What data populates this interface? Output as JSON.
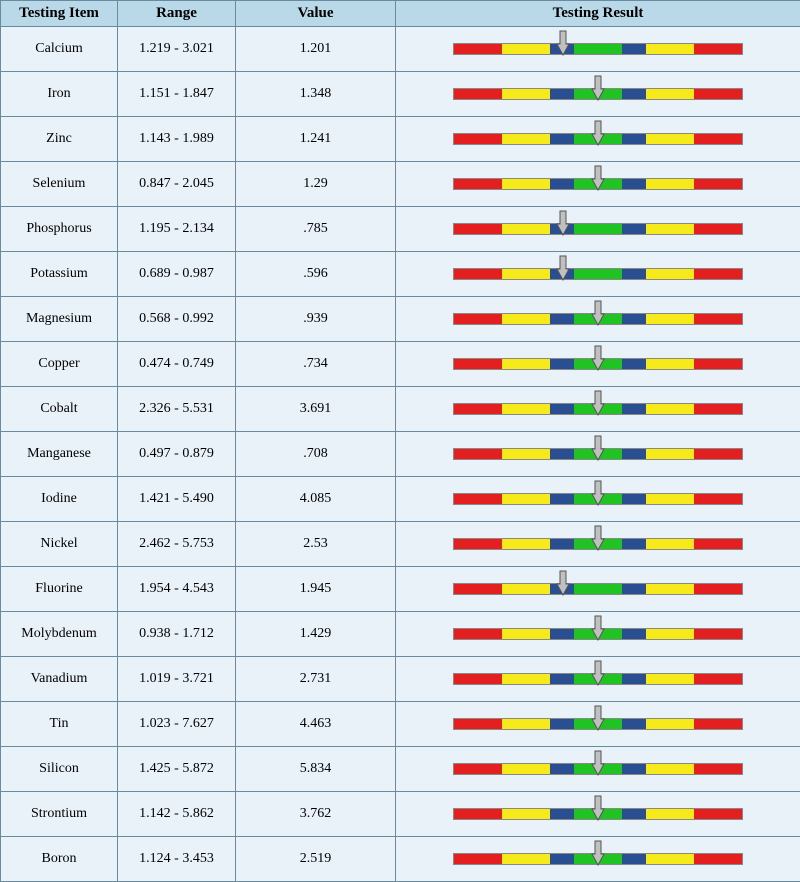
{
  "headers": {
    "item": "Testing Item",
    "range": "Range",
    "value": "Value",
    "result": "Testing Result"
  },
  "gauge": {
    "segments": [
      {
        "color": "#e3201f",
        "ratio": 0.166
      },
      {
        "color": "#f7ea1a",
        "ratio": 0.166
      },
      {
        "color": "#2a4e92",
        "ratio": 0.084
      },
      {
        "color": "#1fc423",
        "ratio": 0.168
      },
      {
        "color": "#2a4e92",
        "ratio": 0.084
      },
      {
        "color": "#f7ea1a",
        "ratio": 0.166
      },
      {
        "color": "#e3201f",
        "ratio": 0.166
      }
    ],
    "arrow_fill": "#c0c0c0",
    "arrow_stroke": "#555555",
    "border_color": "#888888"
  },
  "rows": [
    {
      "item": "Calcium",
      "range": "1.219 - 3.021",
      "value": "1.201",
      "arrow_pos": 0.38
    },
    {
      "item": "Iron",
      "range": "1.151 - 1.847",
      "value": "1.348",
      "arrow_pos": 0.5
    },
    {
      "item": "Zinc",
      "range": "1.143 - 1.989",
      "value": "1.241",
      "arrow_pos": 0.5
    },
    {
      "item": "Selenium",
      "range": "0.847 - 2.045",
      "value": "1.29",
      "arrow_pos": 0.5
    },
    {
      "item": "Phosphorus",
      "range": "1.195 - 2.134",
      "value": ".785",
      "arrow_pos": 0.38
    },
    {
      "item": "Potassium",
      "range": "0.689 - 0.987",
      "value": ".596",
      "arrow_pos": 0.38
    },
    {
      "item": "Magnesium",
      "range": "0.568 - 0.992",
      "value": ".939",
      "arrow_pos": 0.5
    },
    {
      "item": "Copper",
      "range": "0.474 - 0.749",
      "value": ".734",
      "arrow_pos": 0.5
    },
    {
      "item": "Cobalt",
      "range": "2.326 - 5.531",
      "value": "3.691",
      "arrow_pos": 0.5
    },
    {
      "item": "Manganese",
      "range": "0.497 - 0.879",
      "value": ".708",
      "arrow_pos": 0.5
    },
    {
      "item": "Iodine",
      "range": "1.421 - 5.490",
      "value": "4.085",
      "arrow_pos": 0.5
    },
    {
      "item": "Nickel",
      "range": "2.462 - 5.753",
      "value": "2.53",
      "arrow_pos": 0.5
    },
    {
      "item": "Fluorine",
      "range": "1.954 - 4.543",
      "value": "1.945",
      "arrow_pos": 0.38
    },
    {
      "item": "Molybdenum",
      "range": "0.938 - 1.712",
      "value": "1.429",
      "arrow_pos": 0.5
    },
    {
      "item": "Vanadium",
      "range": "1.019 - 3.721",
      "value": "2.731",
      "arrow_pos": 0.5
    },
    {
      "item": "Tin",
      "range": "1.023 - 7.627",
      "value": "4.463",
      "arrow_pos": 0.5
    },
    {
      "item": "Silicon",
      "range": "1.425 - 5.872",
      "value": "5.834",
      "arrow_pos": 0.5
    },
    {
      "item": "Strontium",
      "range": "1.142 - 5.862",
      "value": "3.762",
      "arrow_pos": 0.5
    },
    {
      "item": "Boron",
      "range": "1.124 - 3.453",
      "value": "2.519",
      "arrow_pos": 0.5
    }
  ]
}
